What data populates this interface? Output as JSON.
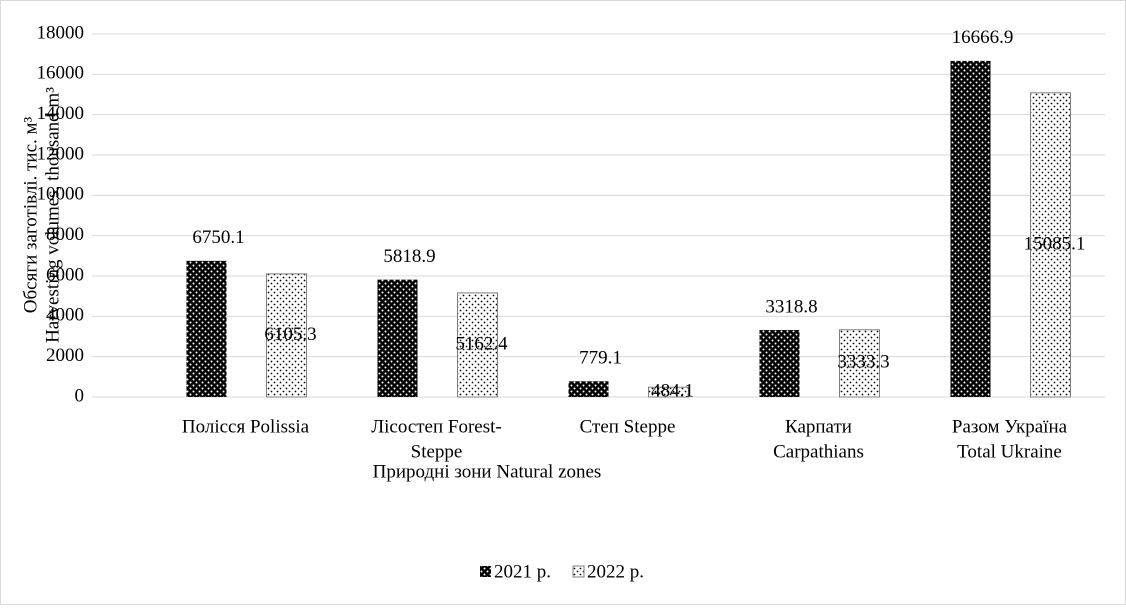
{
  "chart_data": {
    "type": "bar",
    "y_label": [
      "Обсяги заготівлі. тис. м³",
      "Harvesting volumes, thousand m³"
    ],
    "x_label": "Природні зони Natural zones",
    "categories": [
      [
        "Полісся Polissia"
      ],
      [
        "Лісостеп Forest-",
        "Steppe"
      ],
      [
        "Степ Steppe"
      ],
      [
        "Карпати",
        "Carpathians"
      ],
      [
        "Разом Україна",
        "Total Ukraine"
      ]
    ],
    "series": [
      {
        "name": "2021 р.",
        "color": "#000000",
        "values": [
          6750.1,
          5818.9,
          779.1,
          3318.8,
          16666.9
        ]
      },
      {
        "name": "2022 р.",
        "color": "#ffffff",
        "values": [
          6105.3,
          5162.4,
          484.1,
          3333.3,
          15085.1
        ]
      }
    ],
    "ylim": [
      0,
      18000
    ],
    "yticks": [
      0,
      2000,
      4000,
      6000,
      8000,
      10000,
      12000,
      14000,
      16000,
      18000
    ],
    "grid": true,
    "legend": "bottom"
  }
}
